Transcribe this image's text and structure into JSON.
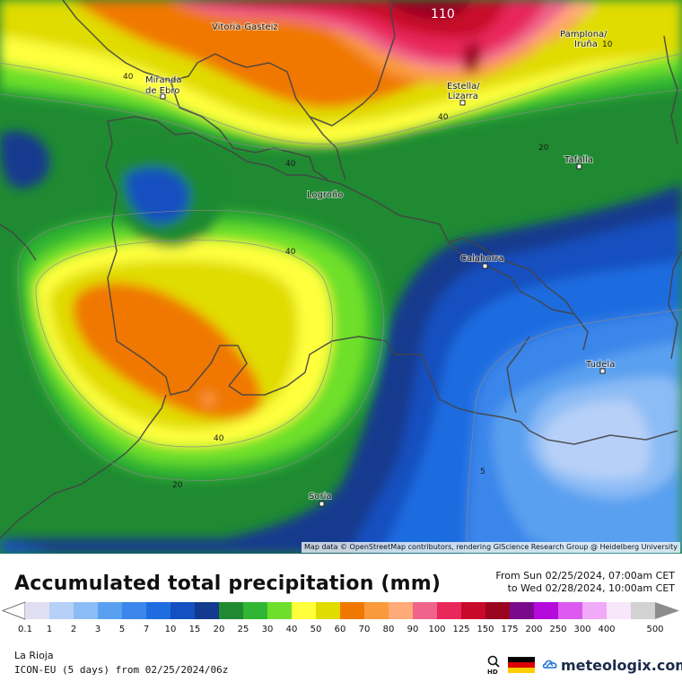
{
  "map": {
    "cities": [
      {
        "name": "Vitoria-Gasteiz"
      },
      {
        "name": "Pamplona/"
      },
      {
        "name": "Iruña"
      },
      {
        "name": "Miranda"
      },
      {
        "name": "de Ebro"
      },
      {
        "name": "Estella/"
      },
      {
        "name": "Lizarra"
      },
      {
        "name": "Tafalla"
      },
      {
        "name": "Logroño"
      },
      {
        "name": "Calahorra"
      },
      {
        "name": "Tudela"
      },
      {
        "name": "Soria"
      }
    ],
    "contour_labels": [
      "110",
      "40",
      "40",
      "40",
      "40",
      "40",
      "20",
      "20",
      "5",
      "10"
    ],
    "attribution": "Map data © OpenStreetMap contributors, rendering GIScience Research Group @ Heidelberg University"
  },
  "header": {
    "title": "Accumulated total precipitation (mm)",
    "from": "From Sun 02/25/2024, 07:00am CET",
    "to": "to Wed 02/28/2024, 10:00am CET"
  },
  "legend": {
    "unit": "mm",
    "bins": [
      {
        "label": "0.1",
        "color": "#e0dff2"
      },
      {
        "label": "1",
        "color": "#b6d0f8"
      },
      {
        "label": "2",
        "color": "#8cbcf5"
      },
      {
        "label": "3",
        "color": "#5aa0f0"
      },
      {
        "label": "5",
        "color": "#3a86ea"
      },
      {
        "label": "7",
        "color": "#1e6ce0"
      },
      {
        "label": "10",
        "color": "#1450bf"
      },
      {
        "label": "15",
        "color": "#123a8e"
      },
      {
        "label": "20",
        "color": "#1f8a32"
      },
      {
        "label": "25",
        "color": "#30b632"
      },
      {
        "label": "30",
        "color": "#6ee02c"
      },
      {
        "label": "40",
        "color": "#ffff3c"
      },
      {
        "label": "50",
        "color": "#e0dc00"
      },
      {
        "label": "60",
        "color": "#f07800"
      },
      {
        "label": "70",
        "color": "#fa9a3c"
      },
      {
        "label": "80",
        "color": "#ffaa78"
      },
      {
        "label": "90",
        "color": "#f0648c"
      },
      {
        "label": "100",
        "color": "#e8285a"
      },
      {
        "label": "125",
        "color": "#c80a2a"
      },
      {
        "label": "150",
        "color": "#9a0520"
      },
      {
        "label": "175",
        "color": "#7a0a8c"
      },
      {
        "label": "200",
        "color": "#b40adc"
      },
      {
        "label": "250",
        "color": "#dc5af0"
      },
      {
        "label": "300",
        "color": "#f0aaf8"
      },
      {
        "label": "400",
        "color": "#f8e6fa"
      },
      {
        "label": "500",
        "color": "#d2d2d2"
      }
    ]
  },
  "footer": {
    "region": "La Rioja",
    "model": "ICON-EU (5 days) from 02/25/2024/06z",
    "hd_label": "HD",
    "brand": "meteologix.com"
  }
}
